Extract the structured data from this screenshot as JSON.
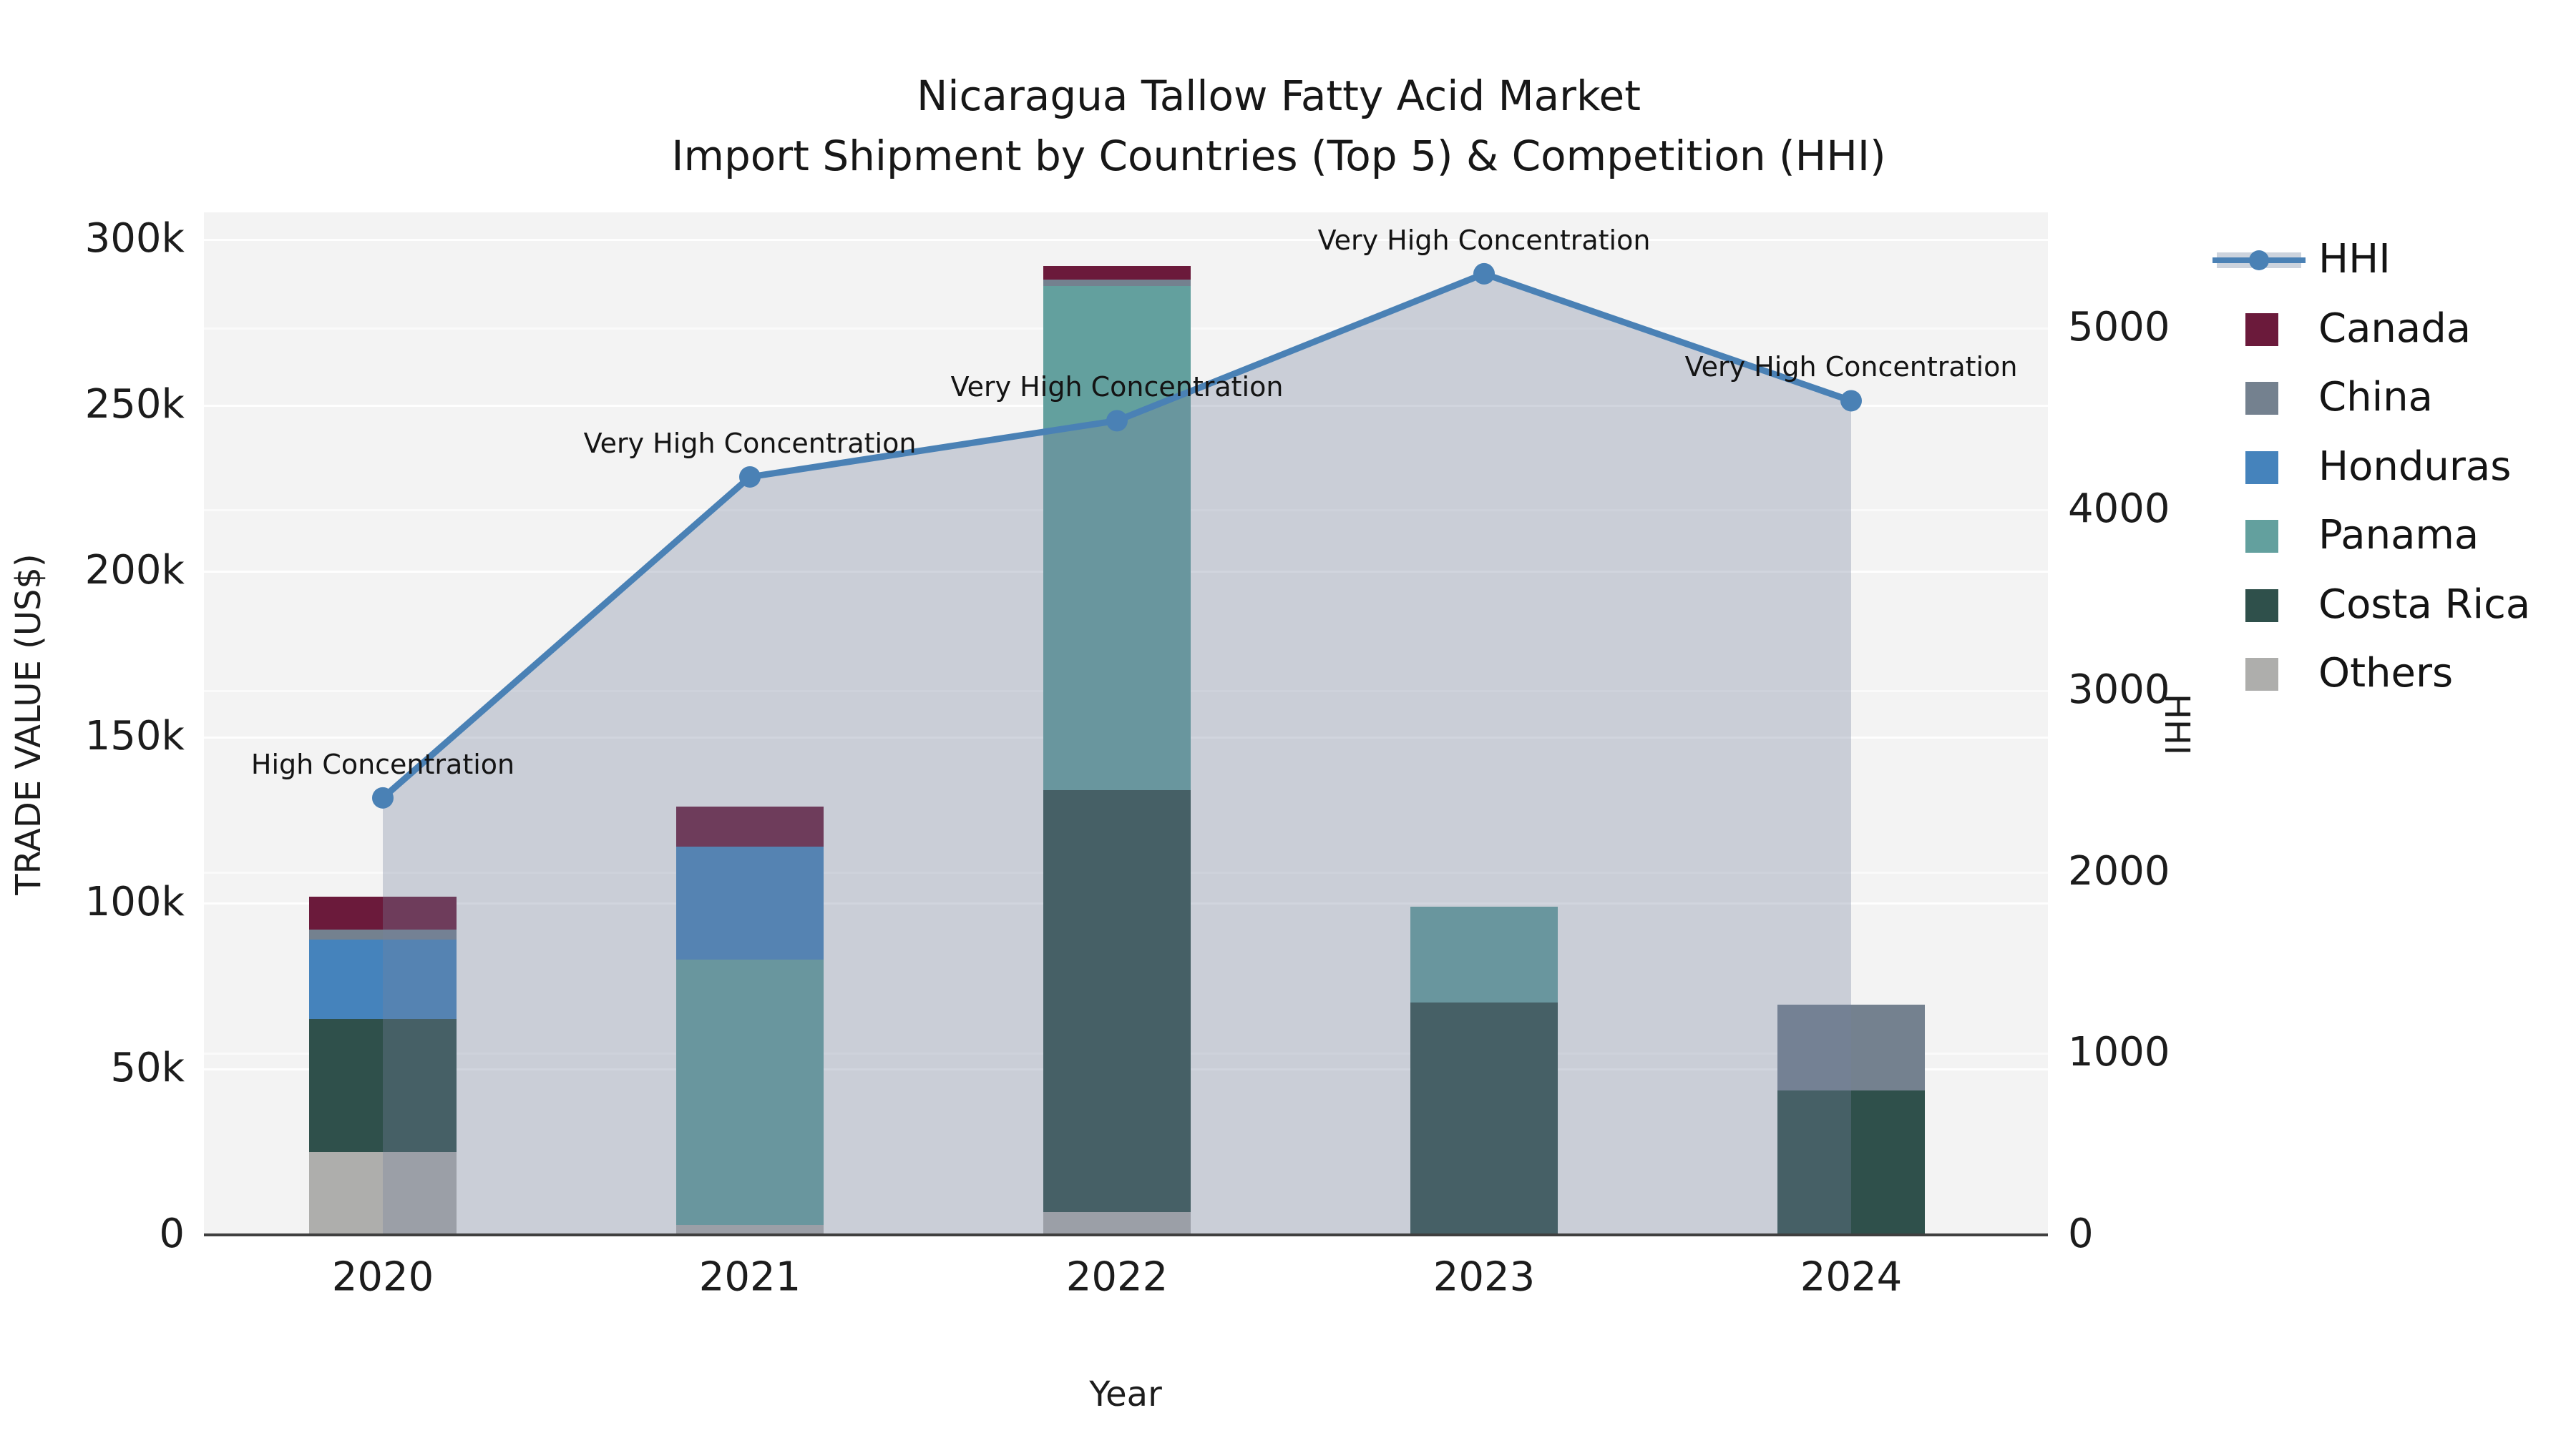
{
  "title": {
    "line1": "Nicaragua Tallow Fatty Acid Market",
    "line2": "Import Shipment by Countries (Top 5) & Competition (HHI)"
  },
  "axes": {
    "x": {
      "label": "Year",
      "categories": [
        "2020",
        "2021",
        "2022",
        "2023",
        "2024"
      ]
    },
    "left": {
      "label": "TRADE VALUE (US$)",
      "ticks": [
        {
          "label": "0",
          "value": 0
        },
        {
          "label": "50k",
          "value": 50000
        },
        {
          "label": "100k",
          "value": 100000
        },
        {
          "label": "150k",
          "value": 150000
        },
        {
          "label": "200k",
          "value": 200000
        },
        {
          "label": "250k",
          "value": 250000
        },
        {
          "label": "300k",
          "value": 300000
        }
      ]
    },
    "right": {
      "label": "HHI",
      "ticks": [
        {
          "label": "0",
          "value": 0
        },
        {
          "label": "1000",
          "value": 1000
        },
        {
          "label": "2000",
          "value": 2000
        },
        {
          "label": "3000",
          "value": 3000
        },
        {
          "label": "4000",
          "value": 4000
        },
        {
          "label": "5000",
          "value": 5000
        }
      ]
    }
  },
  "legend": {
    "items": [
      {
        "label": "HHI",
        "kind": "line-area",
        "color": "#4a81b5",
        "band_color": "#ccd3dd"
      },
      {
        "label": "Canada",
        "kind": "swatch",
        "color": "#6b1a3b"
      },
      {
        "label": "China",
        "kind": "swatch",
        "color": "#74818f"
      },
      {
        "label": "Honduras",
        "kind": "swatch",
        "color": "#4583bc"
      },
      {
        "label": "Panama",
        "kind": "swatch",
        "color": "#63a09e"
      },
      {
        "label": "Costa Rica",
        "kind": "swatch",
        "color": "#2f504b"
      },
      {
        "label": "Others",
        "kind": "swatch",
        "color": "#aeaeac"
      }
    ]
  },
  "chart_data": {
    "type": "bar+line",
    "title": "Nicaragua Tallow Fatty Acid Market — Import Shipment by Countries (Top 5) & Competition (HHI)",
    "xlabel": "Year",
    "ylabel_left": "TRADE VALUE (US$)",
    "ylabel_right": "HHI",
    "categories": [
      "2020",
      "2021",
      "2022",
      "2023",
      "2024"
    ],
    "stack_order": [
      "Others",
      "Costa Rica",
      "Panama",
      "Honduras",
      "China",
      "Canada"
    ],
    "series": [
      {
        "name": "Canada",
        "color": "#6b1a3b",
        "values": [
          10000,
          12000,
          4000,
          0,
          0
        ]
      },
      {
        "name": "China",
        "color": "#74818f",
        "values": [
          3000,
          0,
          2000,
          0,
          26000
        ]
      },
      {
        "name": "Honduras",
        "color": "#4583bc",
        "values": [
          24000,
          34000,
          0,
          0,
          0
        ]
      },
      {
        "name": "Panama",
        "color": "#63a09e",
        "values": [
          0,
          80000,
          152000,
          29000,
          0
        ]
      },
      {
        "name": "Costa Rica",
        "color": "#2f504b",
        "values": [
          40000,
          0,
          127000,
          70000,
          43500
        ]
      },
      {
        "name": "Others",
        "color": "#aeaeac",
        "values": [
          25000,
          3000,
          7000,
          0,
          0
        ]
      }
    ],
    "bar_totals": [
      102000,
      129000,
      292000,
      99000,
      69500
    ],
    "line": {
      "name": "HHI",
      "color": "#4a81b5",
      "area_color": "rgba(119,131,159,0.33)",
      "values": [
        2410,
        4180,
        4490,
        5300,
        4600
      ]
    },
    "annotations": [
      {
        "category": "2020",
        "text": "High Concentration"
      },
      {
        "category": "2021",
        "text": "Very High Concentration"
      },
      {
        "category": "2022",
        "text": "Very High Concentration"
      },
      {
        "category": "2023",
        "text": "Very High Concentration"
      },
      {
        "category": "2024",
        "text": "Very High Concentration"
      }
    ],
    "ylim_left": [
      0,
      310000
    ],
    "ylim_right": [
      0,
      5640
    ],
    "grid": true,
    "legend_position": "right",
    "plot_bg": "#f3f3f3",
    "grid_color": "#ffffff",
    "baseline_color": "#3f3f3f"
  }
}
